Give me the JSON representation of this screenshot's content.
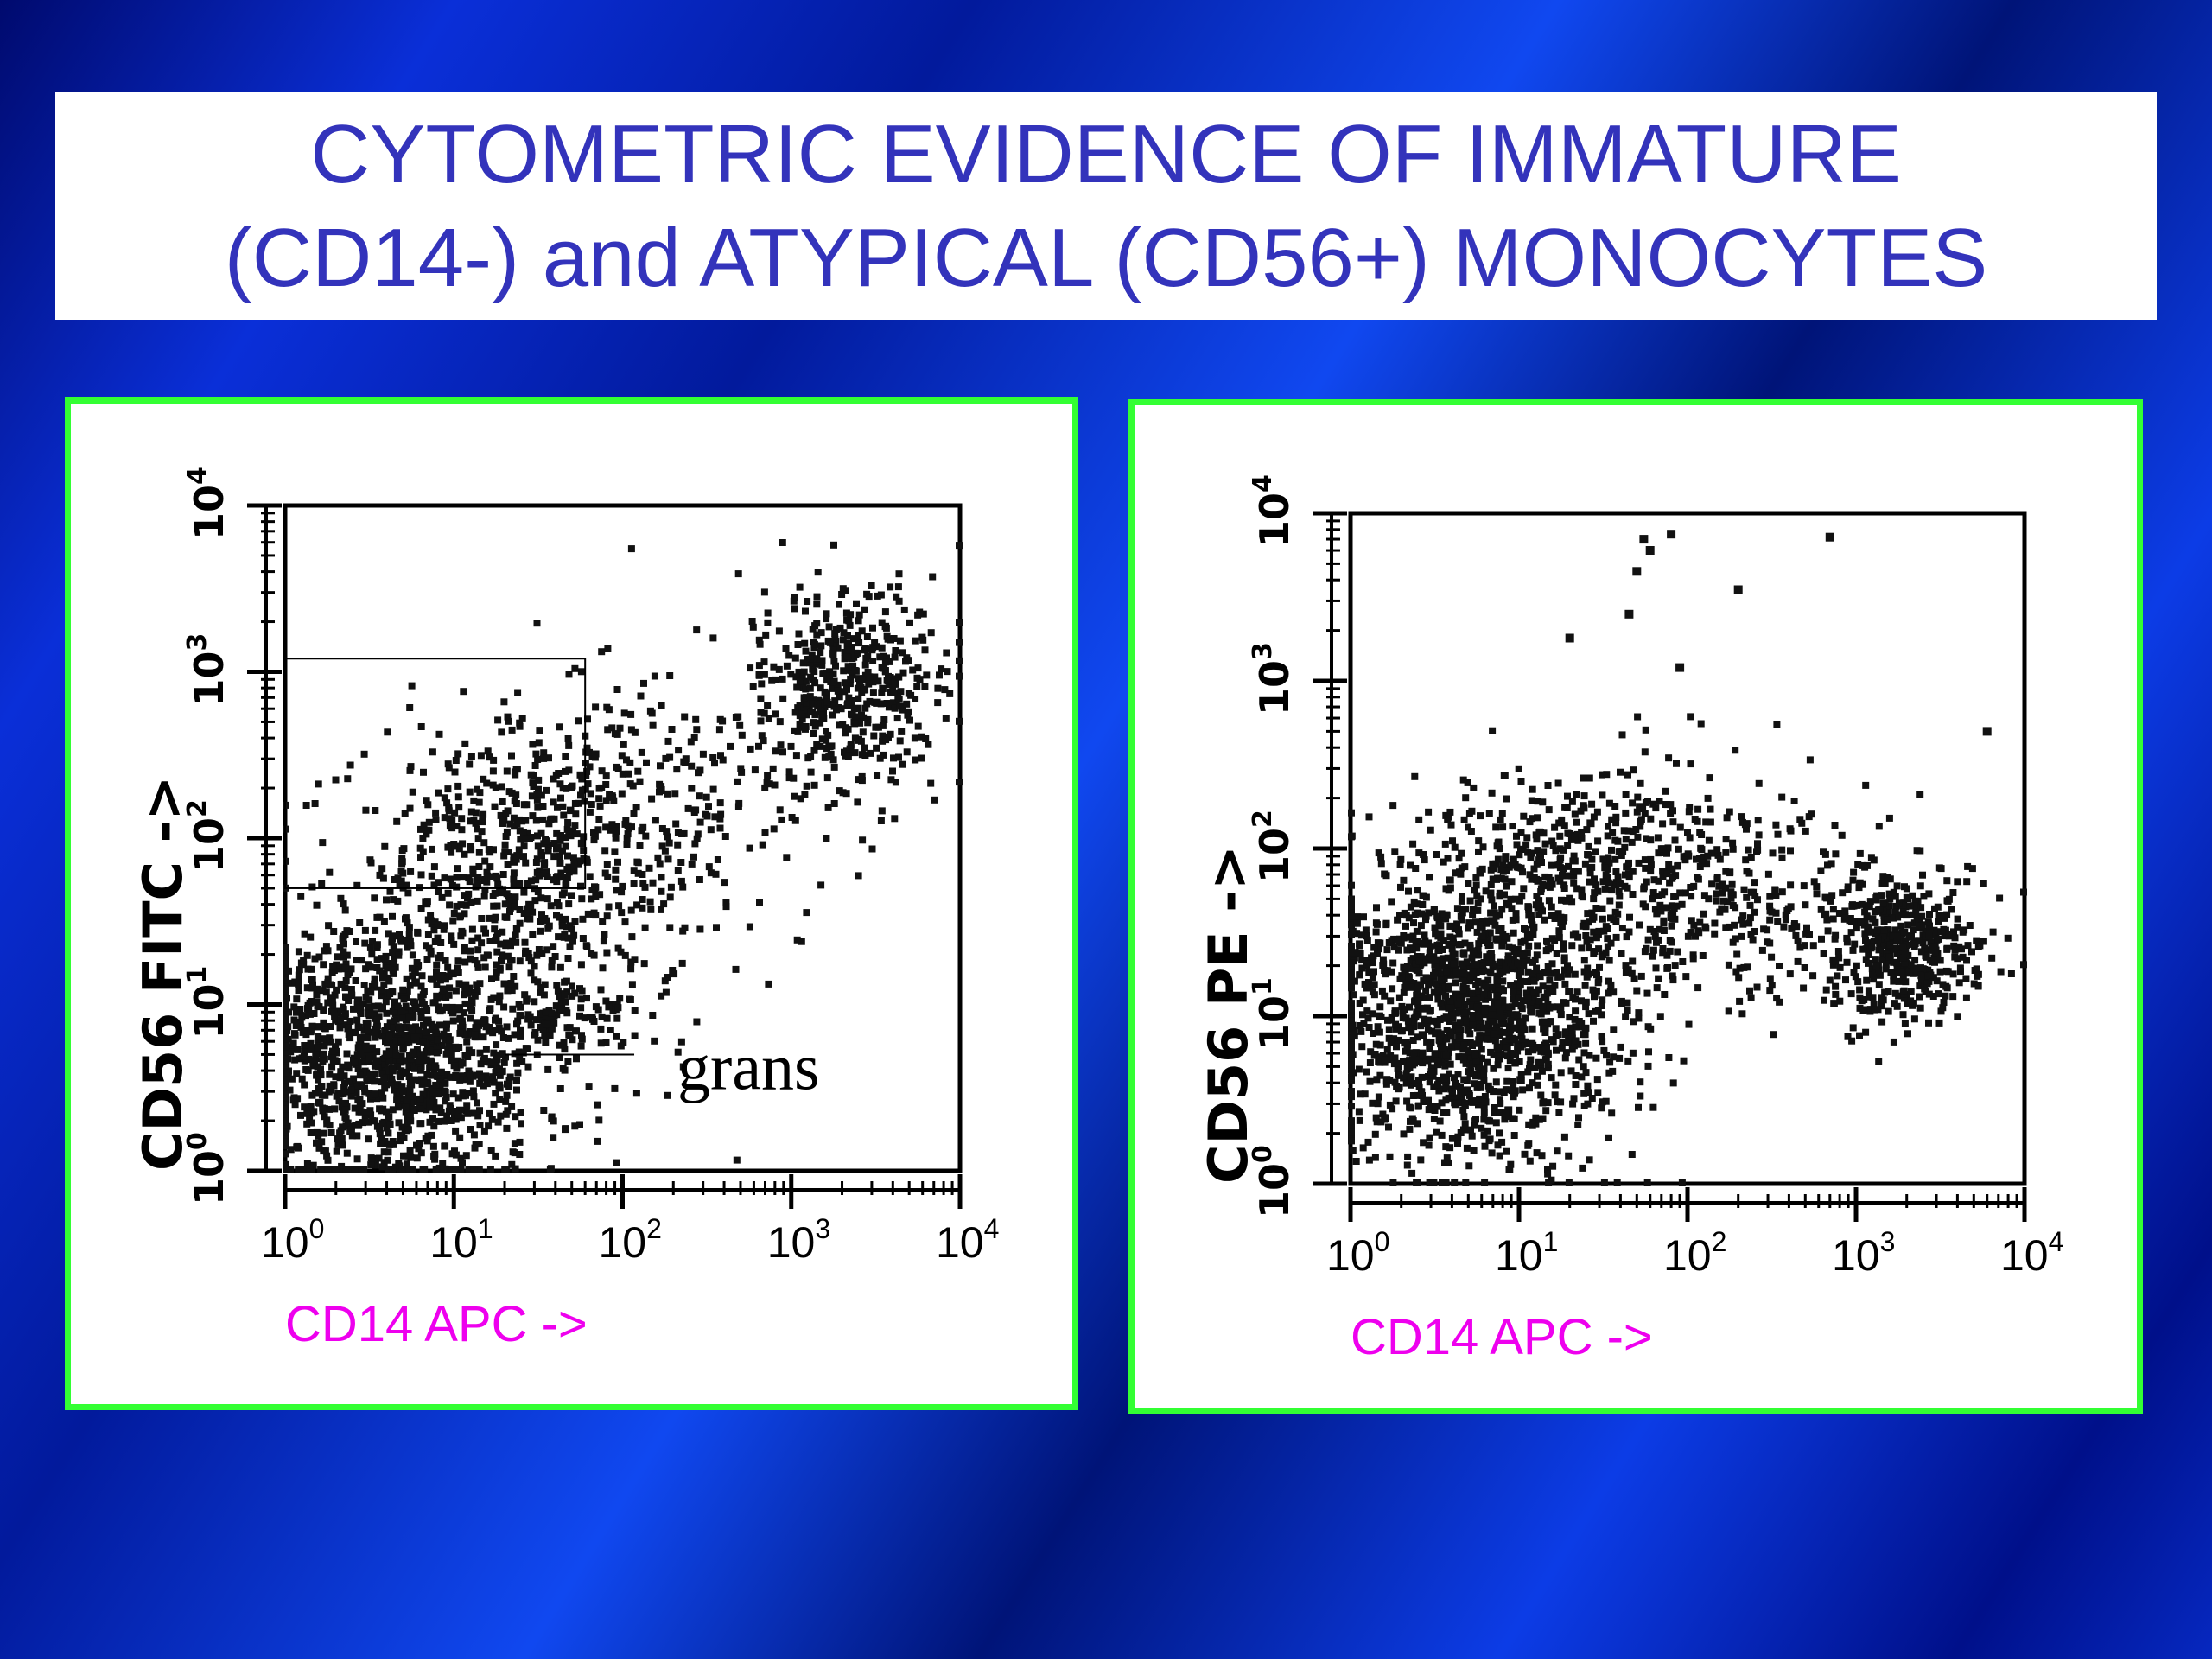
{
  "slide": {
    "title_line1": "CYTOMETRIC EVIDENCE OF IMMATURE",
    "title_line2": "(CD14-) and ATYPICAL (CD56+) MONOCYTES",
    "background_color": "#0a2fd8",
    "title_color": "#3333bb",
    "panel_border_color": "#33ff33"
  },
  "chart_data": [
    {
      "type": "scatter",
      "xlabel": "CD14 APC ->",
      "ylabel": "CD56 FITC ->",
      "x_scale": "log",
      "y_scale": "log",
      "xlim": [
        1,
        10000
      ],
      "ylim": [
        1,
        10000
      ],
      "x_ticks": [
        {
          "base": "10",
          "exp": "0"
        },
        {
          "base": "10",
          "exp": "1"
        },
        {
          "base": "10",
          "exp": "2"
        },
        {
          "base": "10",
          "exp": "3"
        },
        {
          "base": "10",
          "exp": "4"
        }
      ],
      "y_ticks": [
        {
          "base": "10",
          "exp": "0"
        },
        {
          "base": "10",
          "exp": "1"
        },
        {
          "base": "10",
          "exp": "2"
        },
        {
          "base": "10",
          "exp": "3"
        },
        {
          "base": "10",
          "exp": "4"
        }
      ],
      "annotations": [
        {
          "text": "grans",
          "x": 20,
          "y": 5
        }
      ],
      "gate": {
        "x": [
          1,
          60
        ],
        "y": [
          50,
          1200
        ]
      },
      "populations": [
        {
          "center": [
            4,
            5
          ],
          "spread": [
            0.45,
            0.4
          ],
          "count": 1500
        },
        {
          "center": [
            25,
            60
          ],
          "spread": [
            0.45,
            0.45
          ],
          "count": 650
        },
        {
          "center": [
            2200,
            800
          ],
          "spread": [
            0.28,
            0.3
          ],
          "count": 500
        },
        {
          "center": [
            150,
            150
          ],
          "spread": [
            0.55,
            0.45
          ],
          "count": 250
        },
        {
          "center": [
            30,
            8
          ],
          "spread": [
            0.35,
            0.12
          ],
          "count": 120
        }
      ]
    },
    {
      "type": "scatter",
      "xlabel": "CD14 APC ->",
      "ylabel": "CD56 PE ->",
      "x_scale": "log",
      "y_scale": "log",
      "xlim": [
        1,
        10000
      ],
      "ylim": [
        1,
        10000
      ],
      "x_ticks": [
        {
          "base": "10",
          "exp": "0"
        },
        {
          "base": "10",
          "exp": "1"
        },
        {
          "base": "10",
          "exp": "2"
        },
        {
          "base": "10",
          "exp": "3"
        },
        {
          "base": "10",
          "exp": "4"
        }
      ],
      "y_ticks": [
        {
          "base": "10",
          "exp": "0"
        },
        {
          "base": "10",
          "exp": "1"
        },
        {
          "base": "10",
          "exp": "2"
        },
        {
          "base": "10",
          "exp": "3"
        },
        {
          "base": "10",
          "exp": "4"
        }
      ],
      "populations": [
        {
          "center": [
            5,
            10
          ],
          "spread": [
            0.45,
            0.42
          ],
          "count": 1600
        },
        {
          "center": [
            30,
            80
          ],
          "spread": [
            0.6,
            0.3
          ],
          "count": 550
        },
        {
          "center": [
            1800,
            25
          ],
          "spread": [
            0.22,
            0.22
          ],
          "count": 450
        },
        {
          "center": [
            300,
            40
          ],
          "spread": [
            0.55,
            0.3
          ],
          "count": 220
        }
      ],
      "outliers": [
        [
          55,
          7000
        ],
        [
          80,
          7500
        ],
        [
          60,
          6000
        ],
        [
          700,
          7200
        ],
        [
          200,
          3500
        ],
        [
          45,
          2500
        ],
        [
          20,
          1800
        ],
        [
          90,
          1200
        ],
        [
          50,
          4500
        ],
        [
          6000,
          500
        ]
      ]
    }
  ]
}
